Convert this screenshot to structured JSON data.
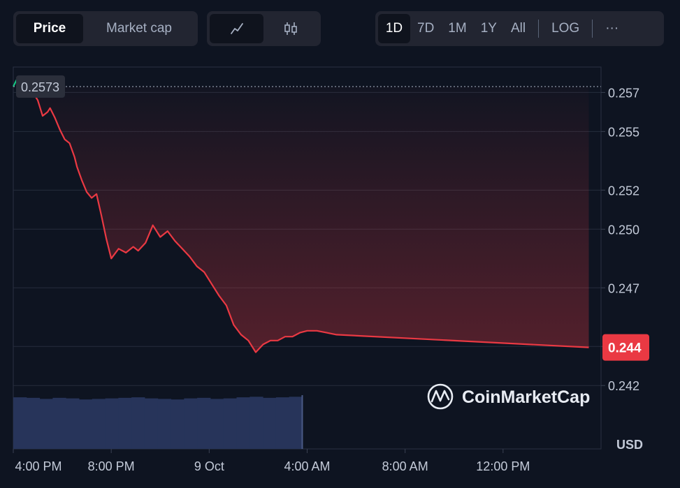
{
  "toolbar": {
    "metric_tabs": [
      "Price",
      "Market cap"
    ],
    "active_metric": "Price",
    "view_icons": [
      "line-chart-icon",
      "candlestick-icon"
    ],
    "ranges": [
      "1D",
      "7D",
      "1M",
      "1Y",
      "All"
    ],
    "active_range": "1D",
    "log_label": "LOG",
    "more_label": "···"
  },
  "colors": {
    "up": "#16c784",
    "down": "#ea3943",
    "volume": "#27345a",
    "background": "#0e1421"
  },
  "watermark": "CoinMarketCap",
  "currency_label": "USD",
  "chart_data": {
    "type": "line",
    "y_ticks": [
      "0.257",
      "0.255",
      "0.252",
      "0.250",
      "0.247",
      "0.244",
      "0.242"
    ],
    "x_ticks": [
      "4:00 PM",
      "8:00 PM",
      "9 Oct",
      "4:00 AM",
      "8:00 AM",
      "12:00 PM"
    ],
    "ylim": [
      0.24165,
      0.2583
    ],
    "open_price": 0.2573,
    "open_label": "0.2573",
    "current_price": 0.24395,
    "current_label": "0.244",
    "grid": true,
    "series": [
      {
        "x": [
          0.0,
          0.2,
          0.3,
          0.5,
          0.7,
          0.85,
          1.0,
          1.2,
          1.4,
          1.5,
          1.7,
          1.9,
          2.1,
          2.3,
          2.5,
          2.6,
          2.8,
          3.0,
          3.2,
          3.4,
          3.6,
          3.8,
          4.0,
          4.3,
          4.6,
          4.9,
          5.1,
          5.4,
          5.7,
          6.0,
          6.3,
          6.6,
          6.9,
          7.2,
          7.5,
          7.8,
          8.1,
          8.4,
          8.7,
          9.0,
          9.3,
          9.6,
          9.9,
          10.2,
          10.5,
          10.8,
          11.1,
          11.4,
          11.7,
          12.0,
          12.4,
          12.8,
          13.2,
          23.5
        ],
        "y": [
          0.2573,
          0.2578,
          0.2577,
          0.2576,
          0.2575,
          0.2569,
          0.2566,
          0.2558,
          0.256,
          0.2562,
          0.2557,
          0.2551,
          0.2546,
          0.2544,
          0.2537,
          0.2532,
          0.2525,
          0.2519,
          0.2516,
          0.2518,
          0.2507,
          0.2495,
          0.2485,
          0.249,
          0.2488,
          0.2491,
          0.2489,
          0.2493,
          0.2502,
          0.2496,
          0.2499,
          0.2494,
          0.249,
          0.2486,
          0.2481,
          0.2478,
          0.2472,
          0.2466,
          0.2461,
          0.2451,
          0.2446,
          0.2443,
          0.2437,
          0.2441,
          0.2443,
          0.2443,
          0.2445,
          0.2445,
          0.2447,
          0.2448,
          0.2448,
          0.2447,
          0.2446,
          0.24395
        ]
      }
    ],
    "volume": {
      "x_end": 11.8,
      "values": [
        0.96,
        0.95,
        0.93,
        0.95,
        0.94,
        0.92,
        0.93,
        0.94,
        0.95,
        0.96,
        0.94,
        0.93,
        0.92,
        0.94,
        0.95,
        0.93,
        0.94,
        0.96,
        0.97,
        0.95,
        0.96,
        0.97
      ]
    }
  }
}
